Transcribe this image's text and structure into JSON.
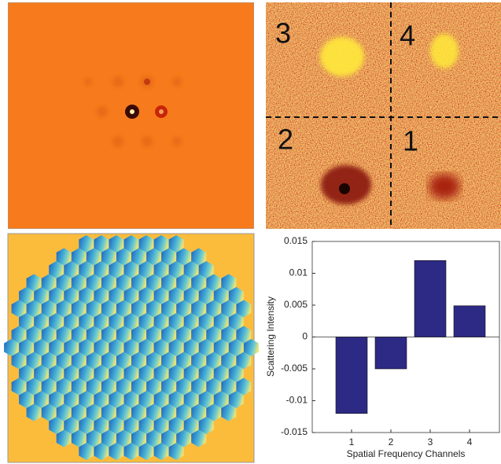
{
  "chart_data": {
    "type": "bar",
    "xlabel": "Spatial Frequency Channels",
    "ylabel": "Scattering Intensity",
    "categories": [
      "1",
      "2",
      "3",
      "4"
    ],
    "values": [
      -0.012,
      -0.005,
      0.012,
      0.0049
    ],
    "color": "#2d2a85",
    "ylim": [
      -0.015,
      0.015
    ],
    "yticks": [
      -0.015,
      -0.01,
      -0.005,
      0,
      0.005,
      0.01,
      0.015
    ]
  },
  "quadrant_labels": [
    "3",
    "4",
    "2",
    "1"
  ]
}
